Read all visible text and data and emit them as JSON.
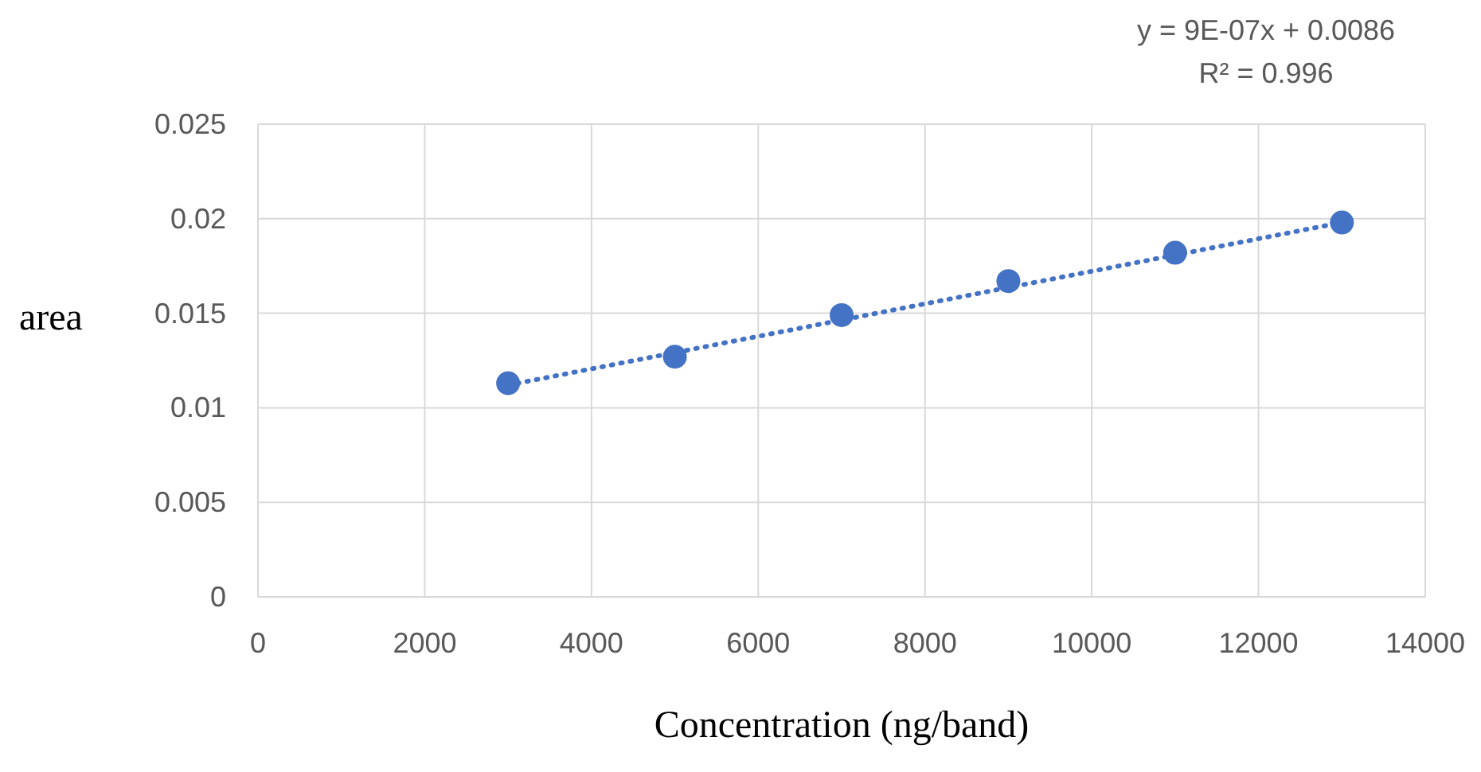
{
  "chart_data": {
    "type": "scatter",
    "xlabel": "Concentration (ng/band)",
    "ylabel": "area",
    "x": [
      3000,
      5000,
      7000,
      9000,
      11000,
      13000
    ],
    "series": [
      {
        "color": "#4472c4",
        "marker": "circle",
        "values": [
          0.0113,
          0.0127,
          0.0149,
          0.0167,
          0.0182,
          0.0198
        ]
      },
      {
        "type": "line",
        "color": "#4472c4",
        "marker": "none",
        "line_style": "dotted",
        "x": [
          3000,
          13000
        ],
        "values": [
          0.0112,
          0.0198
        ]
      }
    ],
    "xlim": [
      0,
      14000
    ],
    "xticks": [
      0,
      2000,
      4000,
      6000,
      8000,
      10000,
      12000,
      14000
    ],
    "ylim": [
      0,
      0.025
    ],
    "yticks": [
      0,
      0.005,
      0.01,
      0.015,
      0.02,
      0.025
    ],
    "grid": true,
    "annotations": [
      "y = 9E-07x + 0.0086",
      "R² = 0.996"
    ]
  }
}
